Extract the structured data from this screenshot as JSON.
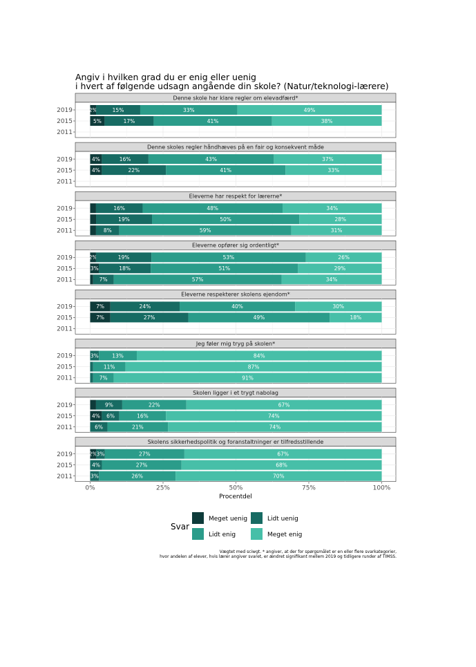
{
  "chart_data": {
    "type": "bar",
    "orientation": "horizontal",
    "stacked": true,
    "title_lines": [
      "Angiv i hvilken grad du er enig eller uenig",
      "i hvert af følgende udsagn angående din skole? (Natur/teknologi-lærere)"
    ],
    "xlabel": "Procentdel",
    "xlim": [
      0,
      100
    ],
    "x_ticks": [
      "0%",
      "25%",
      "50%",
      "75%",
      "100%"
    ],
    "x_tick_values": [
      0,
      25,
      50,
      75,
      100
    ],
    "years": [
      "2019",
      "2015",
      "2011"
    ],
    "legend": {
      "title": "Svar",
      "position": "bottom",
      "items": [
        "Meget uenig",
        "Lidt uenig",
        "Lidt enig",
        "Meget enig"
      ]
    },
    "colors": [
      "#0e3b3a",
      "#176b63",
      "#2b9c8a",
      "#47bfa8"
    ],
    "note_lines": [
      "Vægtet med sciwgt. * angiver, at der for spørgsmålet er en eller flere svarkategorier,",
      "hvor andelen af elever, hvis lærer angiver svaret, er ændret signifikant mellem 2019 og tidligere runder af TIMSS."
    ],
    "panels": [
      {
        "title": "Denne skole har klare regler om elevadfærd*",
        "rows": [
          {
            "year": "2019",
            "values": [
              2,
              15,
              33,
              49
            ],
            "labels": [
              "2%",
              "15%",
              "33%",
              "49%"
            ]
          },
          {
            "year": "2015",
            "values": [
              5,
              17,
              41,
              38
            ],
            "labels": [
              "5%",
              "17%",
              "41%",
              "38%"
            ]
          },
          {
            "year": "2011",
            "values": null,
            "labels": []
          }
        ]
      },
      {
        "title": "Denne skoles regler håndhæves på en fair og konsekvent måde",
        "rows": [
          {
            "year": "2019",
            "values": [
              4,
              16,
              43,
              37
            ],
            "labels": [
              "4%",
              "16%",
              "43%",
              "37%"
            ]
          },
          {
            "year": "2015",
            "values": [
              4,
              22,
              41,
              33
            ],
            "labels": [
              "4%",
              "22%",
              "41%",
              "33%"
            ]
          },
          {
            "year": "2011",
            "values": null,
            "labels": []
          }
        ]
      },
      {
        "title": "Eleverne har respekt for lærerne*",
        "rows": [
          {
            "year": "2019",
            "values": [
              2,
              16,
              48,
              34
            ],
            "labels": [
              "",
              "16%",
              "48%",
              "34%"
            ]
          },
          {
            "year": "2015",
            "values": [
              2,
              19,
              50,
              28
            ],
            "labels": [
              "",
              "19%",
              "50%",
              "28%"
            ]
          },
          {
            "year": "2011",
            "values": [
              2,
              8,
              59,
              31
            ],
            "labels": [
              "",
              "8%",
              "59%",
              "31%"
            ]
          }
        ]
      },
      {
        "title": "Eleverne opfører sig ordentligt*",
        "rows": [
          {
            "year": "2019",
            "values": [
              2,
              19,
              53,
              26
            ],
            "labels": [
              "2%",
              "19%",
              "53%",
              "26%"
            ]
          },
          {
            "year": "2015",
            "values": [
              3,
              18,
              51,
              29
            ],
            "labels": [
              "3%",
              "18%",
              "51%",
              "29%"
            ]
          },
          {
            "year": "2011",
            "values": [
              1,
              7,
              57,
              34
            ],
            "labels": [
              "",
              "7%",
              "57%",
              "34%"
            ]
          }
        ]
      },
      {
        "title": "Eleverne respekterer skolens ejendom*",
        "rows": [
          {
            "year": "2019",
            "values": [
              7,
              24,
              40,
              30
            ],
            "labels": [
              "7%",
              "24%",
              "40%",
              "30%"
            ]
          },
          {
            "year": "2015",
            "values": [
              7,
              27,
              49,
              18
            ],
            "labels": [
              "7%",
              "27%",
              "49%",
              "18%"
            ]
          },
          {
            "year": "2011",
            "values": null,
            "labels": []
          }
        ]
      },
      {
        "title": "Jeg føler mig tryg på skolen*",
        "rows": [
          {
            "year": "2019",
            "values": [
              0,
              3,
              13,
              84
            ],
            "labels": [
              "",
              "3%",
              "13%",
              "84%"
            ]
          },
          {
            "year": "2015",
            "values": [
              0,
              1,
              11,
              87
            ],
            "labels": [
              "",
              "",
              "11%",
              "87%"
            ]
          },
          {
            "year": "2011",
            "values": [
              0,
              1,
              7,
              91
            ],
            "labels": [
              "",
              "",
              "7%",
              "91%"
            ]
          }
        ]
      },
      {
        "title": "Skolen ligger i et trygt nabolag",
        "rows": [
          {
            "year": "2019",
            "values": [
              2,
              9,
              22,
              67
            ],
            "labels": [
              "",
              "9%",
              "22%",
              "67%"
            ]
          },
          {
            "year": "2015",
            "values": [
              4,
              6,
              16,
              74
            ],
            "labels": [
              "4%",
              "6%",
              "16%",
              "74%"
            ]
          },
          {
            "year": "2011",
            "values": [
              0,
              6,
              21,
              74
            ],
            "labels": [
              "",
              "6%",
              "21%",
              "74%"
            ]
          }
        ]
      },
      {
        "title": "Skolens sikkerhedspolitik og foranstaltninger er tilfredsstillende",
        "rows": [
          {
            "year": "2019",
            "values": [
              2,
              3,
              27,
              67
            ],
            "labels": [
              "2%",
              "3%",
              "27%",
              "67%"
            ]
          },
          {
            "year": "2015",
            "values": [
              0,
              4,
              27,
              68
            ],
            "labels": [
              "",
              "4%",
              "27%",
              "68%"
            ]
          },
          {
            "year": "2011",
            "values": [
              0,
              3,
              26,
              70
            ],
            "labels": [
              "",
              "3%",
              "26%",
              "70%"
            ]
          }
        ]
      }
    ]
  }
}
